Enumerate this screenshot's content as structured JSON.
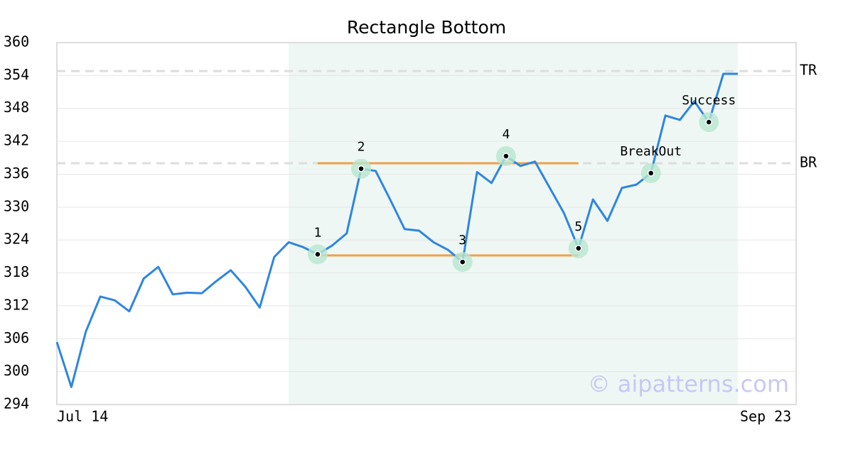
{
  "chart_data": {
    "type": "line",
    "title": "Rectangle Bottom",
    "categories": [
      "Jul 14",
      null,
      null,
      null,
      null,
      null,
      null,
      null,
      null,
      null,
      null,
      null,
      null,
      null,
      null,
      null,
      null,
      null,
      null,
      null,
      null,
      null,
      null,
      null,
      null,
      null,
      null,
      null,
      null,
      null,
      null,
      null,
      null,
      null,
      null,
      null,
      null,
      null,
      null,
      null,
      null,
      null,
      null,
      null,
      null,
      null,
      null,
      "Sep 23"
    ],
    "series": [
      {
        "color": "#2e86de",
        "values": [
          305.4,
          297.2,
          307.3,
          313.7,
          313.0,
          311.0,
          317.0,
          319.1,
          314.1,
          314.4,
          314.3,
          316.5,
          318.5,
          315.5,
          311.7,
          320.9,
          323.6,
          322.7,
          321.4,
          323.0,
          325.2,
          337.0,
          336.6,
          331.4,
          326.0,
          325.7,
          323.6,
          322.2,
          320.0,
          336.4,
          334.4,
          339.3,
          337.5,
          338.3,
          333.6,
          328.9,
          322.5,
          331.4,
          327.5,
          333.5,
          334.1,
          336.2,
          346.7,
          345.9,
          349.3,
          345.5,
          354.3,
          354.3
        ]
      }
    ],
    "ylim": [
      294,
      360
    ],
    "yticks": [
      294,
      300,
      306,
      312,
      318,
      324,
      330,
      336,
      342,
      348,
      354,
      360
    ],
    "grid": true,
    "highlight": {
      "start": 16,
      "end": 47,
      "color": "#eef7f3"
    },
    "reference_lines": [
      {
        "label": "TR",
        "value": 354.8
      },
      {
        "label": "BR",
        "value": 338.0
      }
    ],
    "pattern_lines": [
      {
        "start": 18,
        "end": 36,
        "value": 338.0,
        "color": "#f0a04b"
      },
      {
        "start": 18,
        "end": 36,
        "value": 321.2,
        "color": "#f0a04b"
      }
    ],
    "points": [
      {
        "index": 18,
        "label": "1"
      },
      {
        "index": 21,
        "label": "2"
      },
      {
        "index": 28,
        "label": "3"
      },
      {
        "index": 31,
        "label": "4"
      },
      {
        "index": 36,
        "label": "5"
      },
      {
        "index": 41,
        "label": "BreakOut"
      },
      {
        "index": 45,
        "label": "Success"
      }
    ],
    "watermark": "© aipatterns.com"
  }
}
